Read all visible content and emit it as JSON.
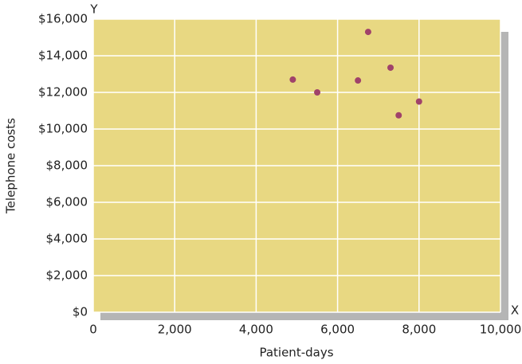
{
  "chart_data": {
    "type": "scatter",
    "x_label": "Patient-days",
    "y_label": "Telephone costs",
    "x_axis_letter": "X",
    "y_axis_letter": "Y",
    "x": [
      4900,
      5500,
      6500,
      6750,
      7300,
      7500,
      8000
    ],
    "values": [
      12700,
      12000,
      12650,
      15300,
      13350,
      10750,
      11500
    ],
    "color": "#a0426a",
    "xlim": [
      0,
      10000
    ],
    "ylim": [
      0,
      16000
    ],
    "xticks": [
      0,
      {
        "value": 2000,
        "label": "2,000"
      },
      {
        "value": 4000,
        "label": "4,000"
      },
      {
        "value": 6000,
        "label": "6,000"
      },
      {
        "value": 8000,
        "label": "8,000"
      },
      {
        "value": 10000,
        "label": "10,000"
      }
    ],
    "yticks": [
      {
        "value": 0,
        "label": "$0"
      },
      {
        "value": 2000,
        "label": "$2,000"
      },
      {
        "value": 4000,
        "label": "$4,000"
      },
      {
        "value": 6000,
        "label": "$6,000"
      },
      {
        "value": 8000,
        "label": "$8,000"
      },
      {
        "value": 10000,
        "label": "$10,000"
      },
      {
        "value": 12000,
        "label": "$12,000"
      },
      {
        "value": 14000,
        "label": "$14,000"
      },
      {
        "value": 16000,
        "label": "$16,000"
      }
    ],
    "grid": true
  }
}
